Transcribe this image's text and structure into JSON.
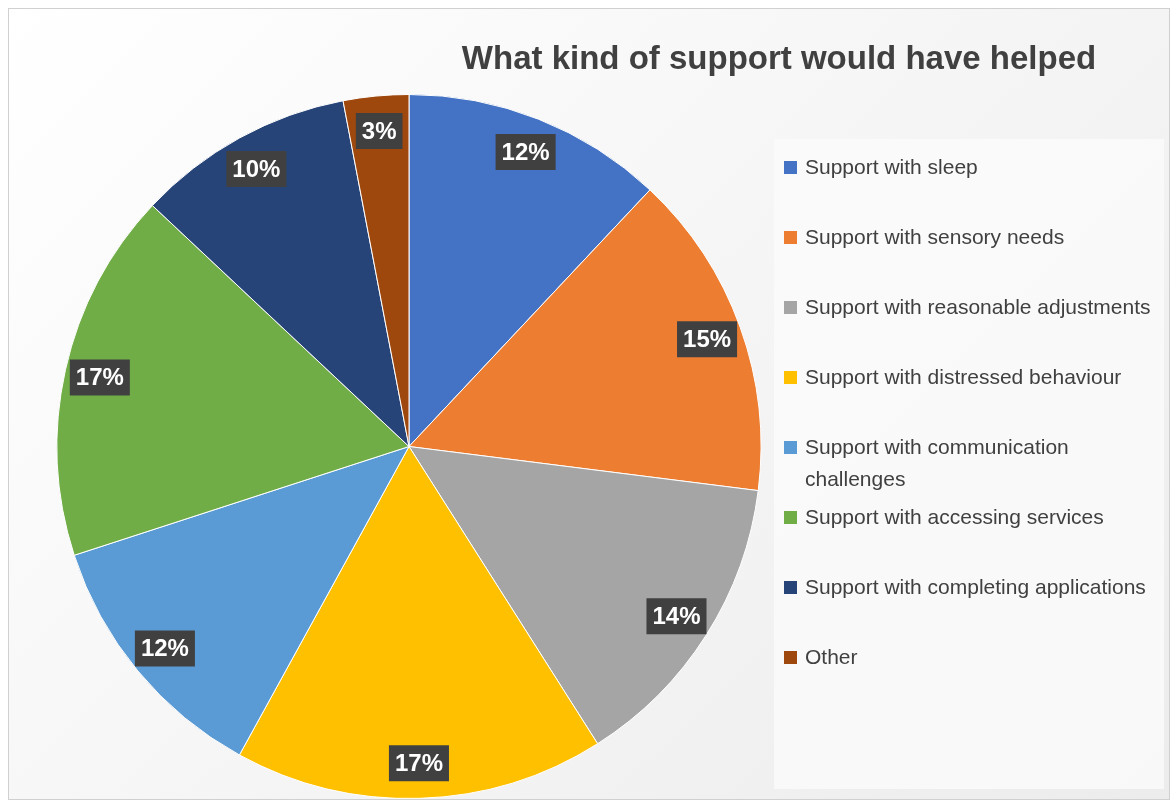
{
  "chart_data": {
    "type": "pie",
    "title": "What kind of support would have helped",
    "categories": [
      "Support with sleep",
      "Support with sensory needs",
      "Support with reasonable adjustments",
      "Support with distressed behaviour",
      "Support with communication challenges",
      "Support with accessing services",
      "Support with completing applications",
      "Other"
    ],
    "values": [
      12,
      15,
      14,
      17,
      12,
      17,
      10,
      3
    ],
    "value_labels": [
      "12%",
      "15%",
      "14%",
      "17%",
      "12%",
      "17%",
      "10%",
      "3%"
    ],
    "colors": [
      "#4472c4",
      "#ed7d31",
      "#a5a5a5",
      "#ffc000",
      "#5b9bd5",
      "#70ad47",
      "#264478",
      "#9e480e"
    ],
    "legend": "right"
  }
}
